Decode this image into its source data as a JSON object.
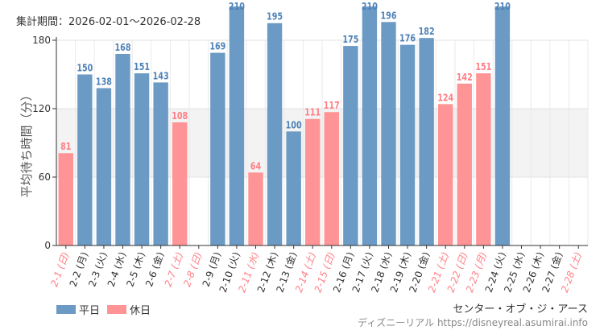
{
  "chart_data": {
    "type": "bar",
    "title": "集計期間：2026-02-01～2026-02-28",
    "ylabel": "平均待ち時間（分）",
    "watermark": "ディズニーリアル https://disneyreal.asumirai.info",
    "attraction": "センター・オブ・ジ・アース",
    "ylim": [
      0,
      180
    ],
    "yticks": [
      0,
      60,
      120,
      180
    ],
    "grid": true,
    "shaded_band": [
      60,
      120
    ],
    "legend_placement": "bottom-left",
    "legend": [
      {
        "name": "平日",
        "color": "#6b9ac4"
      },
      {
        "name": "休日",
        "color": "#ff9496"
      }
    ],
    "colors": {
      "weekday": "#6b9ac4",
      "holiday": "#ff9496",
      "weekday_label": "#4f82b8",
      "holiday_label": "#ff7f86",
      "axis_text": "#333333"
    },
    "categories": [
      "2-1 (日)",
      "2-2 (月)",
      "2-3 (火)",
      "2-4 (水)",
      "2-5 (木)",
      "2-6 (金)",
      "2-7 (土)",
      "2-8 (日)",
      "2-9 (月)",
      "2-10 (火)",
      "2-11 (水)",
      "2-12 (木)",
      "2-13 (金)",
      "2-14 (土)",
      "2-15 (日)",
      "2-16 (月)",
      "2-17 (火)",
      "2-18 (水)",
      "2-19 (木)",
      "2-20 (金)",
      "2-21 (土)",
      "2-22 (日)",
      "2-23 (月)",
      "2-24 (火)",
      "2-25 (水)",
      "2-26 (木)",
      "2-27 (金)",
      "2-28 (土)"
    ],
    "holiday": [
      true,
      false,
      false,
      false,
      false,
      false,
      true,
      true,
      false,
      false,
      true,
      false,
      false,
      true,
      true,
      false,
      false,
      false,
      false,
      false,
      true,
      true,
      true,
      false,
      false,
      false,
      false,
      true
    ],
    "values": [
      81,
      150,
      138,
      168,
      151,
      143,
      108,
      null,
      169,
      210,
      64,
      195,
      100,
      111,
      117,
      175,
      210,
      196,
      176,
      182,
      124,
      142,
      151,
      210,
      null,
      null,
      null,
      null
    ]
  }
}
